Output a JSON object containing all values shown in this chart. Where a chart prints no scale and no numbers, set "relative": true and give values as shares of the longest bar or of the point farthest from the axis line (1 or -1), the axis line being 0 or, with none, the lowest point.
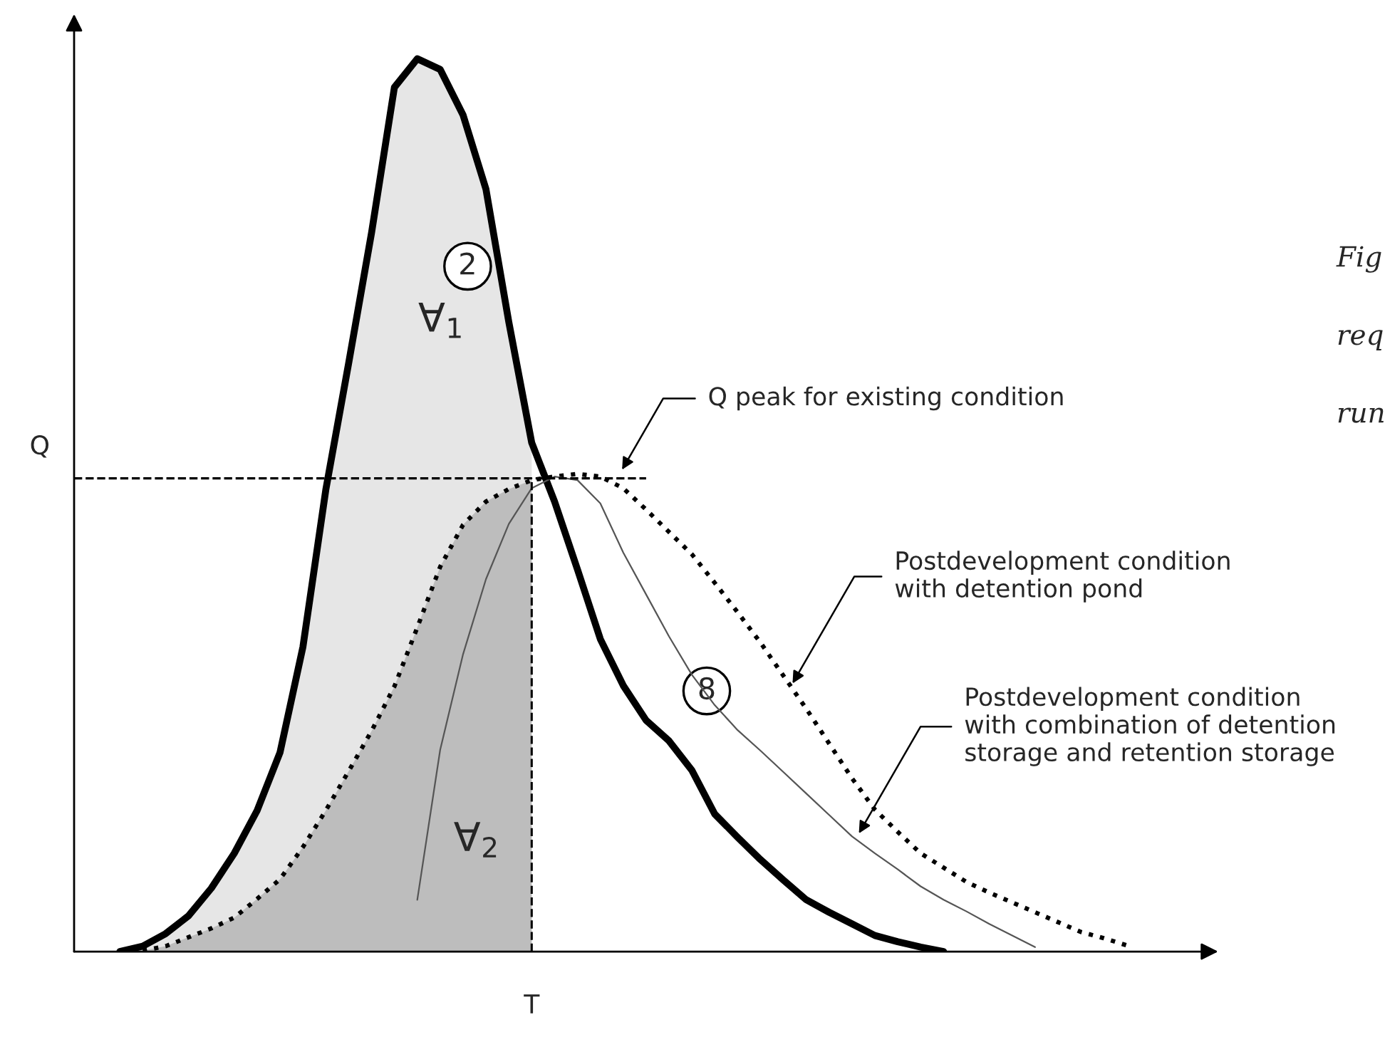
{
  "chart_data": {
    "type": "line",
    "relative": true,
    "xlabel": "T",
    "ylabel": "Q",
    "legend": false,
    "marker": "none",
    "categories": [
      null,
      null,
      null,
      null,
      null,
      null,
      null,
      null,
      null,
      null,
      null,
      null,
      null,
      null,
      null,
      null,
      null,
      null,
      null,
      null,
      null,
      null,
      null,
      null,
      null,
      null,
      null,
      null,
      null,
      null,
      null,
      null,
      null,
      null,
      null,
      null,
      null,
      null,
      null,
      null,
      null,
      null,
      null,
      null,
      null,
      null,
      null,
      null,
      null,
      null,
      null
    ],
    "series": [
      {
        "type": "area",
        "color": "#e6e6e6",
        "values": [
          null,
          null,
          0,
          0.006,
          0.02,
          0.04,
          0.071,
          0.11,
          0.158,
          0.223,
          0.341,
          0.517,
          0.659,
          0.805,
          0.968,
          1,
          0.988,
          0.937,
          0.854,
          0.705,
          0.57,
          null,
          null,
          null,
          null,
          null,
          null,
          null,
          null,
          null,
          null,
          null,
          null,
          null,
          null,
          null,
          null,
          null,
          null,
          null,
          null,
          null,
          null,
          null,
          null,
          null,
          null,
          null,
          null,
          null,
          null
        ]
      },
      {
        "type": "area",
        "color": "#bdbdbd",
        "values": [
          null,
          null,
          null,
          0.001,
          0.006,
          0.016,
          0.026,
          0.038,
          0.059,
          0.081,
          0.117,
          0.158,
          0.202,
          0.247,
          0.297,
          0.363,
          0.431,
          0.478,
          0.504,
          0.518,
          0.528,
          null,
          null,
          null,
          null,
          null,
          null,
          null,
          null,
          null,
          null,
          null,
          null,
          null,
          null,
          null,
          null,
          null,
          null,
          null,
          null,
          null,
          null,
          null,
          null,
          null,
          null,
          null,
          null,
          null,
          null
        ]
      },
      {
        "color": "#000000",
        "line_style": "solid",
        "values": [
          null,
          null,
          0,
          0.006,
          0.02,
          0.04,
          0.071,
          0.11,
          0.158,
          0.223,
          0.341,
          0.517,
          0.659,
          0.805,
          0.968,
          1,
          0.988,
          0.937,
          0.854,
          0.705,
          0.57,
          0.504,
          0.428,
          0.35,
          0.298,
          0.259,
          0.236,
          0.203,
          0.154,
          0.128,
          0.103,
          0.08,
          0.058,
          0.044,
          0.031,
          0.018,
          0.011,
          0.005,
          0,
          null,
          null,
          null,
          null,
          null,
          null,
          null,
          null,
          null,
          null,
          null,
          null
        ]
      },
      {
        "color": "#000000",
        "line_style": "dotted",
        "values": [
          null,
          null,
          null,
          0.001,
          0.006,
          0.016,
          0.026,
          0.038,
          0.059,
          0.081,
          0.117,
          0.158,
          0.202,
          0.247,
          0.297,
          0.363,
          0.431,
          0.478,
          0.504,
          0.518,
          0.528,
          0.532,
          0.535,
          0.532,
          0.519,
          0.495,
          0.47,
          0.445,
          0.413,
          0.38,
          0.346,
          0.309,
          0.272,
          0.233,
          0.194,
          0.159,
          0.134,
          0.11,
          0.094,
          0.078,
          0.066,
          0.055,
          0.044,
          0.033,
          0.022,
          0.015,
          0.007,
          null,
          null,
          null,
          null
        ]
      },
      {
        "color": "#555555",
        "line_style": "solid",
        "values": [
          null,
          null,
          null,
          null,
          null,
          null,
          null,
          null,
          null,
          null,
          null,
          null,
          null,
          null,
          null,
          0.058,
          0.226,
          0.333,
          0.417,
          0.479,
          0.519,
          0.532,
          0.528,
          0.502,
          0.447,
          0.4,
          0.353,
          0.31,
          0.276,
          0.248,
          0.225,
          0.201,
          0.177,
          0.153,
          0.129,
          0.11,
          0.092,
          0.073,
          0.058,
          0.045,
          0.031,
          0.018,
          0.005,
          null,
          null,
          null,
          null,
          null,
          null,
          null,
          null
        ]
      }
    ],
    "ref_lines": [
      {
        "axis": "y",
        "value": 0.53,
        "color": "#000000",
        "line_style": "dashed"
      }
    ],
    "annotations": [
      "2",
      "8",
      "∀$_{1}$",
      "∀$_{2}$",
      "Q peak for existing condition",
      "Postdevelopment condition\nwith detention pond",
      "Postdevelopment condition\nwith combination of detention\nstorage and retention storage",
      "Fig",
      "req",
      "run"
    ]
  }
}
